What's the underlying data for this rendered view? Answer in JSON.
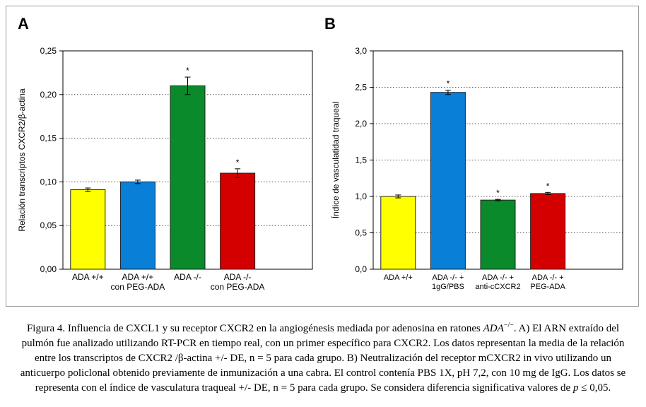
{
  "panels": [
    {
      "letter": "A",
      "chart_data": {
        "type": "bar",
        "ylabel": "Relación transcriptos CXCR2/β-actina",
        "ylim": [
          0,
          0.25
        ],
        "yticks": [
          "0,00",
          "0,05",
          "0,10",
          "0,15",
          "0,20",
          "0,25"
        ],
        "grid": "dotted horizontal",
        "categories": [
          {
            "line1": "ADA +/+",
            "line2": ""
          },
          {
            "line1": "ADA +/+",
            "line2": "con PEG-ADA"
          },
          {
            "line1": "ADA -/-",
            "line2": ""
          },
          {
            "line1": "ADA -/-",
            "line2": "con PEG-ADA"
          }
        ],
        "values": [
          0.091,
          0.1,
          0.21,
          0.11
        ],
        "errors": [
          0.002,
          0.002,
          0.01,
          0.005
        ],
        "significance": [
          "",
          "",
          "*",
          "*"
        ],
        "colors": [
          "#ffff00",
          "#0a7fd8",
          "#0a8a2a",
          "#d40000"
        ]
      }
    },
    {
      "letter": "B",
      "chart_data": {
        "type": "bar",
        "ylabel": "Índice de vasculatidad traqueal",
        "ylim": [
          0,
          3.0
        ],
        "yticks": [
          "0,0",
          "0,5",
          "1,0",
          "1,5",
          "2,0",
          "2,5",
          "3,0"
        ],
        "grid": "dotted horizontal",
        "categories": [
          {
            "line1": "ADA +/+",
            "line2": ""
          },
          {
            "line1": "ADA -/- +",
            "line2": "1gG/PBS"
          },
          {
            "line1": "ADA -/- +",
            "line2": "anti-cCXCR2"
          },
          {
            "line1": "ADA -/- +",
            "line2": "PEG-ADA"
          }
        ],
        "values": [
          1.0,
          2.43,
          0.95,
          1.04
        ],
        "errors": [
          0.02,
          0.03,
          0.01,
          0.015
        ],
        "significance": [
          "",
          "*",
          "*",
          "*"
        ],
        "colors": [
          "#ffff00",
          "#0a7fd8",
          "#0a8a2a",
          "#d40000"
        ]
      }
    }
  ],
  "caption": {
    "prefix": "Figura 4. Influencia de CXCL1 y su receptor CXCR2 en la angiogénesis mediada por adenosina en ratones ",
    "genotype": "ADA",
    "genotype_sup": "−/−",
    "rest": ". A) El ARN extraído del pulmón fue analizado utilizando RT-PCR en tiempo real, con un primer específico para CXCR2. Los datos representan la media de la relación entre los transcriptos de CXCR2 /β-actina +/- DE, n = 5 para cada grupo. B) Neutralización del receptor mCXCR2 in vivo utilizando un anticuerpo policlonal obtenido previamente de inmunización a una cabra. El control contenía PBS 1X, pH 7,2, con 10 mg de IgG. Los datos se representa con el índice de vasculatura traqueal +/- DE, n = 5 para cada grupo. Se considera diferencia significativa valores de ",
    "p_symbol": "p",
    "threshold": " ≤ 0,05."
  }
}
